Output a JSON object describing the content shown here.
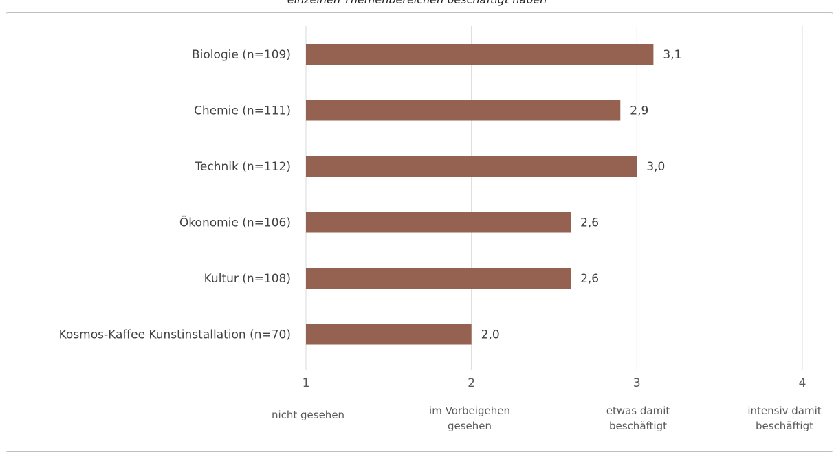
{
  "title_partial": "einzelnen Themenbereichen beschäftigt haben",
  "chart_data": {
    "type": "bar",
    "orientation": "horizontal",
    "title": "einzelnen Themenbereichen beschäftigt haben",
    "categories": [
      "Biologie (n=109)",
      "Chemie (n=111)",
      "Technik (n=112)",
      "Ökonomie (n=106)",
      "Kultur (n=108)",
      "Kosmos-Kaffee Kunstinstallation (n=70)"
    ],
    "values": [
      3.1,
      2.9,
      3.0,
      2.6,
      2.6,
      2.0
    ],
    "value_labels": [
      "3,1",
      "2,9",
      "3,0",
      "2,6",
      "2,6",
      "2,0"
    ],
    "xlim": [
      1,
      4
    ],
    "x_ticks": [
      1,
      2,
      3,
      4
    ],
    "x_tick_labels": [
      "1",
      "2",
      "3",
      "4"
    ],
    "scale_labels": [
      [
        "nicht gesehen"
      ],
      [
        "im Vorbeigehen",
        "gesehen"
      ],
      [
        "etwas damit",
        "beschäftigt"
      ],
      [
        "intensiv damit",
        "beschäftigt"
      ]
    ],
    "grid": "vertical",
    "bar_color": "#956251",
    "grid_color": "#d9d9d9"
  }
}
